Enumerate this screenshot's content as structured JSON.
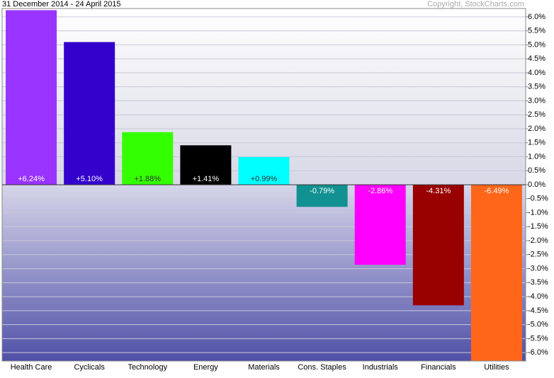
{
  "chart_data": {
    "type": "bar",
    "title": "31 December 2014 - 24 April 2015",
    "credit": "Copyright, StockCharts.com",
    "categories": [
      "Health Care",
      "Cyclicals",
      "Technology",
      "Energy",
      "Materials",
      "Cons. Staples",
      "Industrials",
      "Financials",
      "Utilities"
    ],
    "values": [
      6.24,
      5.1,
      1.88,
      1.41,
      0.99,
      -0.79,
      -2.86,
      -4.31,
      -6.49
    ],
    "value_labels": [
      "+6.24%",
      "+5.10%",
      "+1.88%",
      "+1.41%",
      "+0.99%",
      "-0.79%",
      "-2.86%",
      "-4.31%",
      "-6.49%"
    ],
    "colors": [
      "#9933ff",
      "#3300cc",
      "#33ff00",
      "#000000",
      "#00ffff",
      "#119191",
      "#ff00ff",
      "#990000",
      "#ff6619"
    ],
    "ylim": [
      -6.3,
      6.3
    ],
    "yticks": [
      {
        "value": 6.0,
        "label": "6.0%"
      },
      {
        "value": 5.5,
        "label": "5.5%"
      },
      {
        "value": 5.0,
        "label": "5.0%"
      },
      {
        "value": 4.5,
        "label": "4.5%"
      },
      {
        "value": 4.0,
        "label": "4.0%"
      },
      {
        "value": 3.5,
        "label": "3.5%"
      },
      {
        "value": 3.0,
        "label": "3.0%"
      },
      {
        "value": 2.5,
        "label": "2.5%"
      },
      {
        "value": 2.0,
        "label": "2.0%"
      },
      {
        "value": 1.5,
        "label": "1.5%"
      },
      {
        "value": 1.0,
        "label": "1.0%"
      },
      {
        "value": 0.5,
        "label": "0.5%"
      },
      {
        "value": 0.0,
        "label": "0.0%"
      },
      {
        "value": -0.5,
        "label": "-0.5%"
      },
      {
        "value": -1.0,
        "label": "-1.0%"
      },
      {
        "value": -1.5,
        "label": "-1.5%"
      },
      {
        "value": -2.0,
        "label": "-2.0%"
      },
      {
        "value": -2.5,
        "label": "-2.5%"
      },
      {
        "value": -3.0,
        "label": "-3.0%"
      },
      {
        "value": -3.5,
        "label": "-3.5%"
      },
      {
        "value": -4.0,
        "label": "-4.0%"
      },
      {
        "value": -4.5,
        "label": "-4.5%"
      },
      {
        "value": -5.0,
        "label": "-5.0%"
      },
      {
        "value": -5.5,
        "label": "-5.5%"
      },
      {
        "value": -6.0,
        "label": "-6.0%"
      }
    ],
    "grid": true
  }
}
